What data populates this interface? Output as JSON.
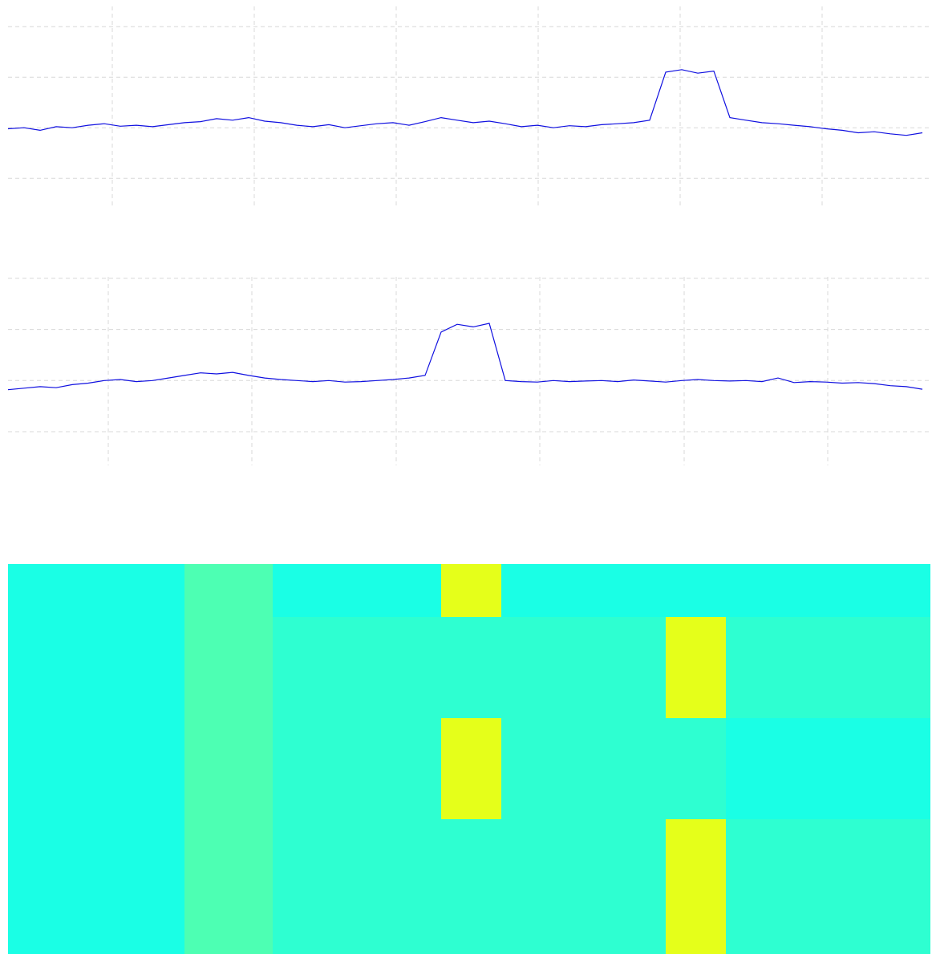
{
  "chart_data": [
    {
      "type": "line",
      "color": "#1010e0",
      "grid": true,
      "xlim": [
        0,
        1150
      ],
      "xticks": [
        130,
        307,
        484,
        661,
        838,
        1015
      ],
      "ylim": [
        -0.6,
        3.4
      ],
      "yticks": [
        0,
        1,
        2,
        3
      ],
      "x": [
        0,
        20,
        40,
        60,
        80,
        100,
        120,
        140,
        160,
        180,
        200,
        220,
        240,
        260,
        280,
        300,
        320,
        340,
        360,
        380,
        400,
        420,
        440,
        460,
        480,
        500,
        520,
        540,
        560,
        580,
        600,
        620,
        640,
        660,
        680,
        700,
        720,
        740,
        760,
        780,
        800,
        820,
        840,
        860,
        880,
        900,
        920,
        940,
        960,
        980,
        1000,
        1020,
        1040,
        1060,
        1080,
        1100,
        1120,
        1140
      ],
      "values": [
        0.98,
        1.0,
        0.95,
        1.02,
        1.0,
        1.05,
        1.08,
        1.03,
        1.05,
        1.02,
        1.06,
        1.1,
        1.12,
        1.18,
        1.15,
        1.2,
        1.13,
        1.1,
        1.05,
        1.02,
        1.06,
        1.0,
        1.04,
        1.08,
        1.1,
        1.05,
        1.12,
        1.2,
        1.15,
        1.1,
        1.13,
        1.08,
        1.02,
        1.05,
        1.0,
        1.04,
        1.02,
        1.06,
        1.08,
        1.1,
        1.15,
        2.1,
        2.15,
        2.08,
        2.12,
        1.2,
        1.15,
        1.1,
        1.08,
        1.05,
        1.02,
        0.98,
        0.95,
        0.9,
        0.92,
        0.88,
        0.85,
        0.9
      ]
    },
    {
      "type": "line",
      "color": "#1010e0",
      "grid": true,
      "xlim": [
        0,
        1150
      ],
      "xticks": [
        125,
        304,
        484,
        663,
        843,
        1022
      ],
      "ylim": [
        -0.66,
        3.03
      ],
      "yticks": [
        0,
        1,
        2,
        3
      ],
      "x": [
        0,
        20,
        40,
        60,
        80,
        100,
        120,
        140,
        160,
        180,
        200,
        220,
        240,
        260,
        280,
        300,
        320,
        340,
        360,
        380,
        400,
        420,
        440,
        460,
        480,
        500,
        520,
        540,
        560,
        580,
        600,
        620,
        640,
        660,
        680,
        700,
        720,
        740,
        760,
        780,
        800,
        820,
        840,
        860,
        880,
        900,
        920,
        940,
        960,
        980,
        1000,
        1020,
        1040,
        1060,
        1080,
        1100,
        1120,
        1140
      ],
      "values": [
        0.82,
        0.85,
        0.88,
        0.86,
        0.92,
        0.95,
        1.0,
        1.02,
        0.98,
        1.0,
        1.05,
        1.1,
        1.15,
        1.13,
        1.16,
        1.1,
        1.05,
        1.02,
        1.0,
        0.98,
        1.0,
        0.97,
        0.98,
        1.0,
        1.02,
        1.05,
        1.1,
        1.95,
        2.1,
        2.05,
        2.12,
        1.0,
        0.98,
        0.97,
        1.0,
        0.98,
        0.99,
        1.0,
        0.98,
        1.01,
        0.99,
        0.97,
        1.0,
        1.02,
        1.0,
        0.99,
        1.0,
        0.98,
        1.05,
        0.96,
        0.98,
        0.97,
        0.95,
        0.96,
        0.94,
        0.9,
        0.88,
        0.83
      ]
    },
    {
      "type": "heatmap",
      "zlim": [
        0,
        1
      ],
      "xlim": [
        0,
        1150
      ],
      "ylim": [
        0,
        486
      ],
      "x": [
        0,
        220,
        330,
        540,
        615,
        820,
        895,
        1150
      ],
      "y": [
        0,
        66,
        192,
        318,
        486
      ],
      "z": [
        [
          0.4,
          0.45,
          0.4,
          0.6,
          0.4,
          0.4,
          0.4
        ],
        [
          0.4,
          0.45,
          0.42,
          0.42,
          0.42,
          0.6,
          0.42
        ],
        [
          0.4,
          0.45,
          0.42,
          0.6,
          0.42,
          0.42,
          0.4
        ],
        [
          0.4,
          0.45,
          0.42,
          0.42,
          0.42,
          0.6,
          0.42
        ]
      ]
    }
  ]
}
